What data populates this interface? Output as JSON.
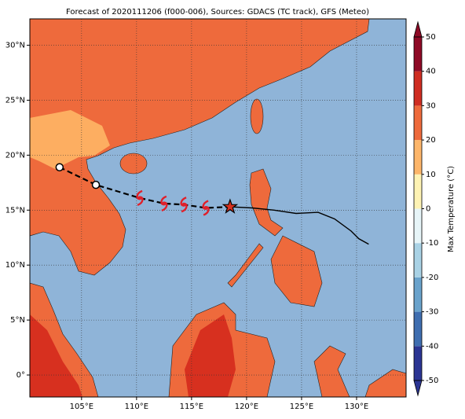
{
  "title": "Forecast of 2020111206 (f000-006), Sources: GDACS (TC track), GFS (Meteo)",
  "map": {
    "lonlim": [
      100.3,
      134.5
    ],
    "latlim": [
      -2,
      32.4
    ],
    "lon_ticks": [
      {
        "value": 105,
        "label": "105°E"
      },
      {
        "value": 110,
        "label": "110°E"
      },
      {
        "value": 115,
        "label": "115°E"
      },
      {
        "value": 120,
        "label": "120°E"
      },
      {
        "value": 125,
        "label": "125°E"
      },
      {
        "value": 130,
        "label": "130°E"
      }
    ],
    "lat_ticks": [
      {
        "value": 0,
        "label": "0°"
      },
      {
        "value": 5,
        "label": "5°N"
      },
      {
        "value": 10,
        "label": "10°N"
      },
      {
        "value": 15,
        "label": "15°N"
      },
      {
        "value": 20,
        "label": "20°N"
      },
      {
        "value": 25,
        "label": "25°N"
      },
      {
        "value": 30,
        "label": "30°N"
      }
    ],
    "track": {
      "lon": [
        103.0,
        106.3,
        110.3,
        112.5,
        114.3,
        116.3,
        118.5
      ],
      "lat": [
        18.9,
        17.3,
        16.1,
        15.6,
        15.5,
        15.2,
        15.3
      ]
    },
    "forecast": {
      "lon": [
        118.5,
        120.5,
        122.5,
        124.5,
        126.5,
        128.0,
        129.5,
        130.2,
        131.1
      ],
      "lat": [
        15.3,
        15.2,
        15.0,
        14.7,
        14.8,
        14.2,
        13.1,
        12.4,
        11.9
      ]
    }
  },
  "colorbar": {
    "label": "Max Temperature (°C)",
    "ticks": [
      -50,
      -40,
      -30,
      -20,
      -10,
      0,
      10,
      20,
      30,
      40,
      50
    ],
    "colors": [
      "#2b3593",
      "#3f6eb0",
      "#6aa3cc",
      "#a9d2e5",
      "#e7f5f8",
      "#fef3b4",
      "#fdb66a",
      "#ee6a3c",
      "#cf2d22",
      "#8e0a26"
    ]
  }
}
